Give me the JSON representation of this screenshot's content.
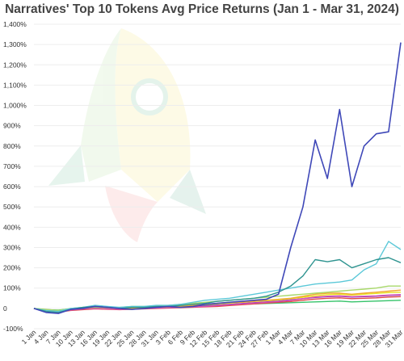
{
  "chart_data": {
    "type": "line",
    "title": "Narratives' Top 10 Tokens Avg Price Returns (Jan 1 - Mar 31, 2024)",
    "xlabel": "",
    "ylabel": "",
    "ylim": [
      -100,
      1400
    ],
    "y_ticks": [
      "-100%",
      "0",
      "100%",
      "200%",
      "300%",
      "400%",
      "500%",
      "600%",
      "700%",
      "800%",
      "900%",
      "1,000%",
      "1,100%",
      "1,200%",
      "1,300%",
      "1,400%"
    ],
    "y_tick_values": [
      -100,
      0,
      100,
      200,
      300,
      400,
      500,
      600,
      700,
      800,
      900,
      1000,
      1100,
      1200,
      1300,
      1400
    ],
    "categories": [
      "1 Jan",
      "4 Jan",
      "7 Jan",
      "10 Jan",
      "13 Jan",
      "16 Jan",
      "19 Jan",
      "22 Jan",
      "25 Jan",
      "28 Jan",
      "31 Jan",
      "3 Feb",
      "6 Feb",
      "9 Feb",
      "12 Feb",
      "15 Feb",
      "18 Feb",
      "21 Feb",
      "24 Feb",
      "27 Feb",
      "1 Mar",
      "4 Mar",
      "7 Mar",
      "10 Mar",
      "13 Mar",
      "16 Mar",
      "19 Mar",
      "22 Mar",
      "25 Mar",
      "28 Mar",
      "31 Mar"
    ],
    "grid": true,
    "legend": "none",
    "series": [
      {
        "color": "#3f48b8",
        "values": [
          0,
          -20,
          -25,
          -5,
          0,
          10,
          5,
          0,
          -5,
          0,
          5,
          10,
          5,
          10,
          20,
          25,
          30,
          35,
          40,
          45,
          70,
          300,
          500,
          830,
          640,
          980,
          600,
          800,
          860,
          870,
          1310
        ]
      },
      {
        "color": "#2f9490",
        "values": [
          0,
          -15,
          -20,
          -5,
          5,
          10,
          5,
          0,
          5,
          5,
          10,
          10,
          15,
          20,
          25,
          35,
          40,
          45,
          50,
          60,
          80,
          110,
          160,
          240,
          230,
          240,
          200,
          220,
          240,
          250,
          225
        ]
      },
      {
        "color": "#5bc8d8",
        "values": [
          0,
          -10,
          -15,
          0,
          5,
          15,
          10,
          5,
          10,
          10,
          15,
          15,
          20,
          30,
          40,
          45,
          50,
          60,
          70,
          80,
          90,
          100,
          110,
          120,
          125,
          130,
          140,
          190,
          220,
          330,
          290
        ]
      },
      {
        "color": "#a8d86a",
        "values": [
          0,
          -5,
          -10,
          0,
          5,
          5,
          5,
          5,
          10,
          10,
          10,
          15,
          20,
          25,
          30,
          35,
          40,
          45,
          50,
          55,
          60,
          65,
          70,
          75,
          80,
          85,
          90,
          95,
          100,
          110,
          110
        ]
      },
      {
        "color": "#f0a830",
        "values": [
          0,
          -10,
          -12,
          -5,
          0,
          5,
          5,
          0,
          0,
          5,
          5,
          10,
          10,
          15,
          20,
          25,
          30,
          30,
          35,
          40,
          45,
          50,
          60,
          70,
          75,
          75,
          70,
          75,
          80,
          85,
          90
        ]
      },
      {
        "color": "#e8e020",
        "values": [
          0,
          -8,
          -10,
          -3,
          2,
          5,
          3,
          0,
          2,
          5,
          6,
          8,
          10,
          14,
          18,
          22,
          26,
          30,
          34,
          38,
          42,
          48,
          55,
          62,
          68,
          70,
          66,
          70,
          74,
          78,
          80
        ]
      },
      {
        "color": "#d64db5",
        "values": [
          0,
          -12,
          -15,
          -8,
          -3,
          0,
          -2,
          -5,
          -3,
          0,
          2,
          4,
          6,
          8,
          10,
          14,
          18,
          22,
          26,
          30,
          34,
          40,
          48,
          56,
          60,
          62,
          58,
          60,
          62,
          66,
          68
        ]
      },
      {
        "color": "#7b2fbf",
        "values": [
          0,
          -10,
          -14,
          -6,
          -2,
          2,
          0,
          -3,
          -1,
          2,
          4,
          6,
          8,
          10,
          12,
          16,
          20,
          24,
          28,
          32,
          36,
          42,
          48,
          54,
          58,
          60,
          56,
          58,
          60,
          64,
          66
        ]
      },
      {
        "color": "#e04848",
        "values": [
          0,
          -14,
          -18,
          -10,
          -6,
          -2,
          -4,
          -6,
          -4,
          -2,
          0,
          2,
          4,
          6,
          8,
          10,
          14,
          18,
          22,
          26,
          30,
          34,
          40,
          46,
          50,
          52,
          48,
          50,
          52,
          56,
          58
        ]
      },
      {
        "color": "#36c36a",
        "values": [
          0,
          -6,
          -8,
          -2,
          2,
          4,
          2,
          0,
          2,
          4,
          6,
          8,
          10,
          12,
          14,
          16,
          18,
          20,
          22,
          24,
          26,
          28,
          30,
          32,
          34,
          36,
          32,
          34,
          36,
          38,
          40
        ]
      }
    ]
  },
  "watermark_icon": "rocket-icon"
}
